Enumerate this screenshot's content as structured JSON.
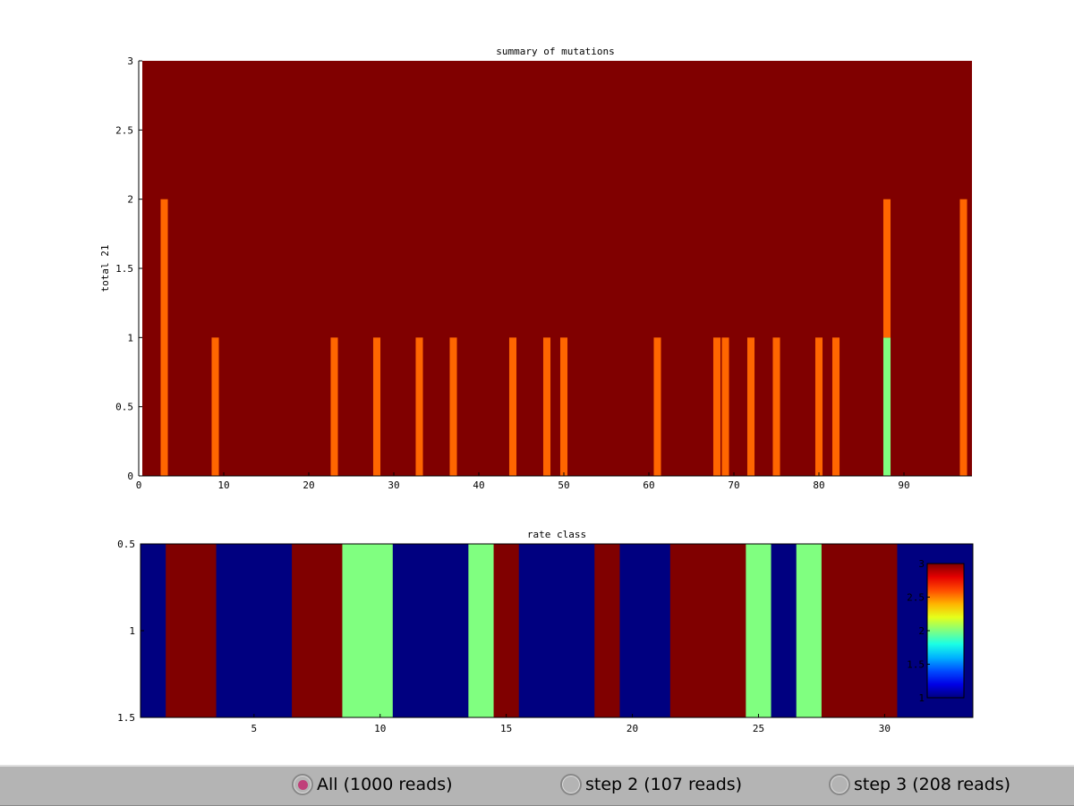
{
  "chart_data": [
    {
      "type": "bar",
      "title": "summary of mutations",
      "ylabel": "total 21",
      "xlabel": "",
      "xlim": [
        0,
        98
      ],
      "ylim": [
        0,
        3
      ],
      "xticks": [
        0,
        10,
        20,
        30,
        40,
        50,
        60,
        70,
        80,
        90
      ],
      "yticks": [
        0,
        0.5,
        1,
        1.5,
        2,
        2.5,
        3
      ],
      "background_color": "#800000",
      "stacked": true,
      "x": [
        3,
        9,
        23,
        28,
        33,
        37,
        44,
        48,
        50,
        61,
        68,
        69,
        72,
        75,
        80,
        82,
        88,
        97
      ],
      "series": [
        {
          "color": "#80ff80",
          "values": [
            0,
            0,
            0,
            0,
            0,
            0,
            0,
            0,
            0,
            0,
            0,
            0,
            0,
            0,
            0,
            0,
            1,
            0
          ]
        },
        {
          "color": "#ff6600",
          "values": [
            2,
            1,
            1,
            1,
            1,
            1,
            1,
            1,
            1,
            1,
            1,
            1,
            1,
            1,
            1,
            1,
            1,
            2
          ]
        }
      ]
    },
    {
      "type": "heatmap",
      "title": "rate class",
      "xlim": [
        0.5,
        33.5
      ],
      "ylim": [
        0.5,
        1.5
      ],
      "xticks": [
        5,
        10,
        15,
        20,
        25,
        30
      ],
      "yticks": [
        0.5,
        1,
        1.5
      ],
      "colormap": "jet",
      "clim": [
        1,
        3
      ],
      "colorbar_ticks": [
        1,
        1.5,
        2,
        2.5,
        3
      ],
      "values": [
        1,
        3,
        3,
        1,
        1,
        1,
        3,
        3,
        2,
        2,
        1,
        1,
        1,
        2,
        3,
        1,
        1,
        1,
        3,
        1,
        1,
        3,
        3,
        3,
        2,
        1,
        2,
        3,
        3,
        3,
        1,
        1,
        1
      ]
    }
  ],
  "controls": {
    "options": [
      {
        "label": "All (1000 reads)",
        "selected": true
      },
      {
        "label": "step 2 (107 reads)",
        "selected": false
      },
      {
        "label": "step 3 (208 reads)",
        "selected": false
      }
    ]
  }
}
